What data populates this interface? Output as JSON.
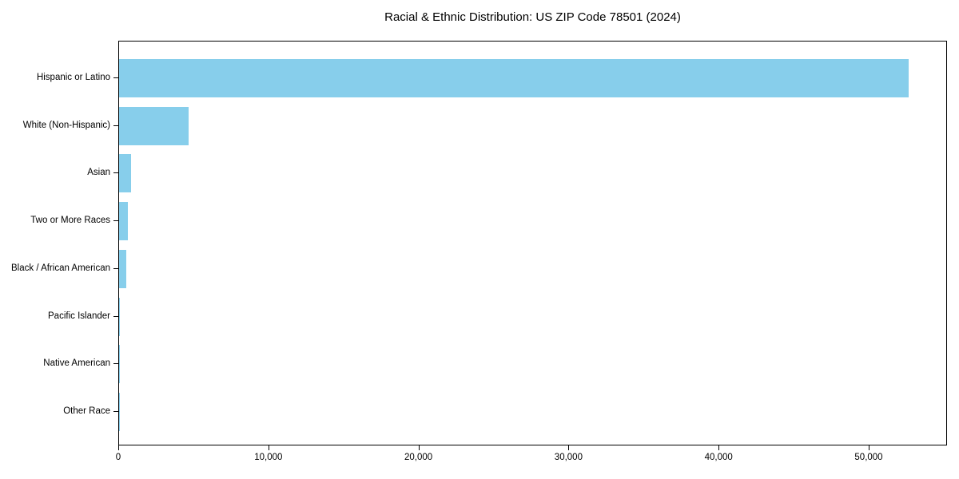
{
  "chart_data": {
    "type": "bar",
    "orientation": "horizontal",
    "title": "Racial & Ethnic Distribution: US ZIP Code 78501 (2024)",
    "xlabel": "",
    "ylabel": "",
    "categories": [
      "Hispanic or Latino",
      "White (Non-Hispanic)",
      "Asian",
      "Two or More Races",
      "Black / African American",
      "Pacific Islander",
      "Native American",
      "Other Race"
    ],
    "values": [
      52600,
      4650,
      820,
      580,
      460,
      40,
      30,
      15
    ],
    "bar_color": "#87CEEB",
    "xlim": [
      0,
      55200
    ],
    "x_ticks": [
      0,
      10000,
      20000,
      30000,
      40000,
      50000
    ],
    "x_tick_labels": [
      "0",
      "10,000",
      "20,000",
      "30,000",
      "40,000",
      "50,000"
    ],
    "grid": false,
    "legend": null,
    "background_color": "#ffffff",
    "spines": "full-box"
  }
}
